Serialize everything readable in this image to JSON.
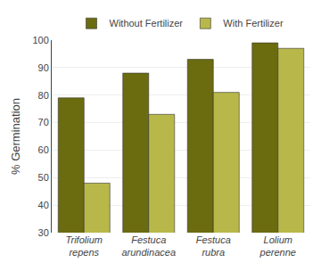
{
  "chart_data": {
    "type": "bar",
    "categories": [
      "Trifolium\nrepens",
      "Festuca\narundinacea",
      "Festuca\nrubra",
      "Lolium\nperenne"
    ],
    "series": [
      {
        "name": "Without Fertilizer",
        "color": "#6b6b10",
        "values": [
          79,
          88,
          93,
          99
        ]
      },
      {
        "name": "With Fertilizer",
        "color": "#b8b84a",
        "values": [
          48,
          73,
          81,
          97
        ]
      }
    ],
    "ylabel": "% Germination",
    "ylim": [
      30,
      100
    ],
    "yticks": [
      30,
      40,
      50,
      60,
      70,
      80,
      90,
      100
    ],
    "grid": true,
    "legend": "top"
  }
}
